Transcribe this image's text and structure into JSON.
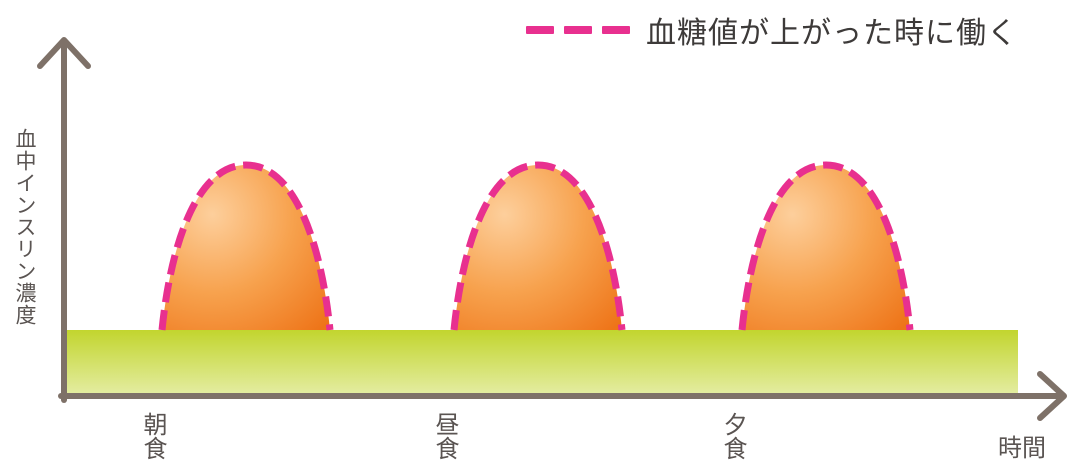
{
  "legend": {
    "label": "血糖値が上がった時に働く",
    "dash_color": "#e8308f"
  },
  "axes": {
    "y_label": "血中インスリン濃度",
    "x_label": "時間",
    "axis_color": "#7e7168"
  },
  "meals": [
    {
      "label": "朝食"
    },
    {
      "label": "昼食"
    },
    {
      "label": "夕食"
    }
  ],
  "colors": {
    "baseline_top": "#c2d52e",
    "baseline_bottom": "#dfe99a",
    "peak_light": "#fcc38a",
    "peak_dark": "#f07a1e",
    "peak_outline": "#e8308f"
  }
}
